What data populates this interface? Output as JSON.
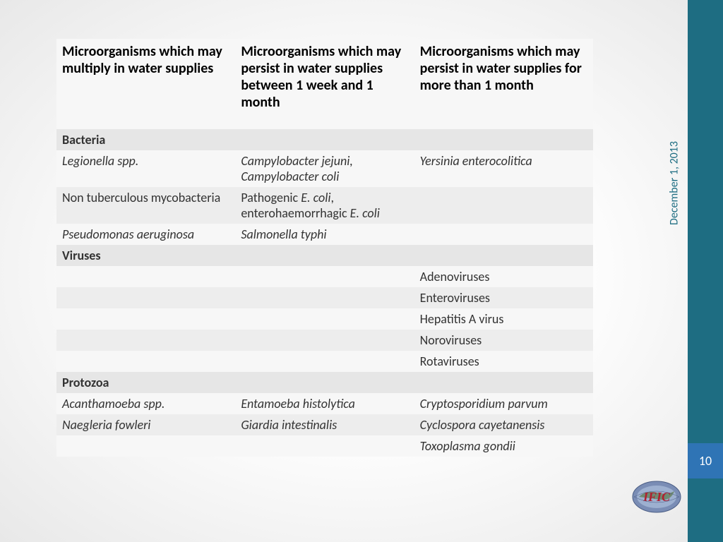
{
  "sidebar": {
    "date": "December 1, 2013",
    "page_number": "10",
    "logo_text": "IFIC",
    "teal_color": "#1e6d82",
    "pagenum_bg": "#2f74b5"
  },
  "table": {
    "columns": [
      "Microorganisms which may multiply in water supplies",
      "Microorganisms which may persist in water supplies between 1 week and 1 month",
      "Microorganisms which may persist in water supplies for more than 1 month"
    ],
    "rows": [
      {
        "type": "section",
        "cells": [
          "Bacteria",
          "",
          ""
        ]
      },
      {
        "type": "data",
        "zebra": "odd",
        "italic": [
          true,
          true,
          true
        ],
        "cells": [
          "Legionella spp.",
          "Campylobacter jejuni, Campylobacter coli",
          "Yersinia enterocolitica"
        ]
      },
      {
        "type": "data",
        "zebra": "even",
        "italic": [
          false,
          false,
          false
        ],
        "cells": [
          "Non tuberculous mycobacteria",
          "Pathogenic <i>E. coli</i>, enterohaemorrhagic <i>E. coli</i>",
          ""
        ],
        "html": true
      },
      {
        "type": "data",
        "zebra": "odd",
        "italic": [
          true,
          true,
          false
        ],
        "cells": [
          "Pseudomonas aeruginosa",
          "Salmonella typhi",
          ""
        ]
      },
      {
        "type": "section",
        "cells": [
          "Viruses",
          "",
          ""
        ]
      },
      {
        "type": "data",
        "zebra": "odd",
        "italic": [
          false,
          false,
          false
        ],
        "cells": [
          "",
          "",
          "Adenoviruses"
        ]
      },
      {
        "type": "data",
        "zebra": "even",
        "italic": [
          false,
          false,
          false
        ],
        "cells": [
          "",
          "",
          "Enteroviruses"
        ]
      },
      {
        "type": "data",
        "zebra": "odd",
        "italic": [
          false,
          false,
          false
        ],
        "cells": [
          "",
          "",
          "Hepatitis A virus"
        ]
      },
      {
        "type": "data",
        "zebra": "even",
        "italic": [
          false,
          false,
          false
        ],
        "cells": [
          "",
          "",
          "Noroviruses"
        ]
      },
      {
        "type": "data",
        "zebra": "odd",
        "italic": [
          false,
          false,
          false
        ],
        "cells": [
          "",
          "",
          "Rotaviruses"
        ]
      },
      {
        "type": "section",
        "cells": [
          "Protozoa",
          "",
          ""
        ]
      },
      {
        "type": "data",
        "zebra": "odd",
        "italic": [
          true,
          true,
          true
        ],
        "cells": [
          "Acanthamoeba spp.",
          "Entamoeba histolytica",
          "Cryptosporidium parvum"
        ]
      },
      {
        "type": "data",
        "zebra": "even",
        "italic": [
          true,
          true,
          true
        ],
        "cells": [
          "Naegleria fowleri",
          "Giardia intestinalis",
          "Cyclospora cayetanensis"
        ]
      },
      {
        "type": "data",
        "zebra": "odd",
        "italic": [
          false,
          false,
          true
        ],
        "cells": [
          "",
          "",
          "Toxoplasma gondii"
        ]
      }
    ],
    "header_bg": "#f7f7f7",
    "section_bg": "#e6e6e6",
    "odd_bg": "#f7f7f7",
    "even_bg": "#ededed",
    "body_fontsize": 18,
    "header_fontsize": 20
  }
}
